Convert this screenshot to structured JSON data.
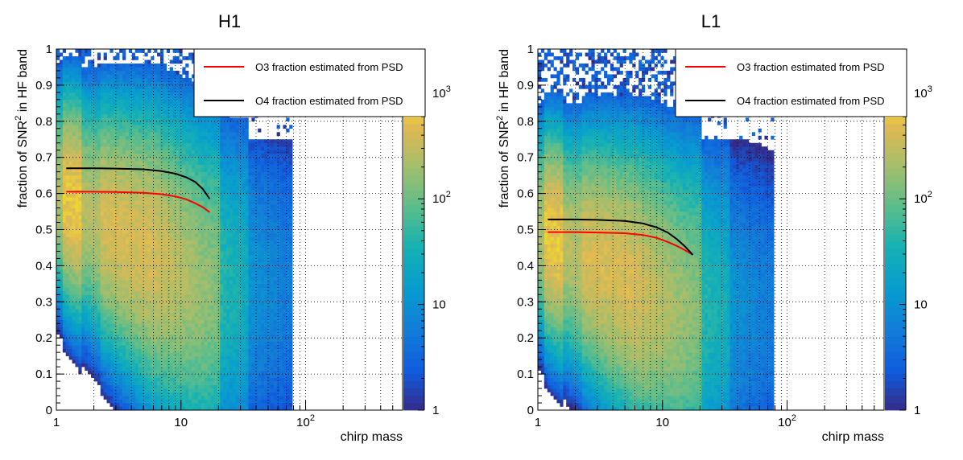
{
  "panels": [
    {
      "title": "H1",
      "xlabel": "chirp mass",
      "ylabel_parts": [
        "fraction of SNR",
        "2",
        " in HF band"
      ],
      "legend": [
        {
          "label": "O3 fraction estimated from PSD",
          "color": "#ff0000"
        },
        {
          "label": "O4 fraction estimated from PSD",
          "color": "#000000"
        }
      ],
      "colorbar_ticks": [
        {
          "value": 1,
          "label": "1"
        },
        {
          "value": 10,
          "label": "10"
        },
        {
          "value": 100,
          "label": "10",
          "sup": "2"
        },
        {
          "value": 1000,
          "label": "10",
          "sup": "3"
        }
      ]
    },
    {
      "title": "L1",
      "xlabel": "chirp mass",
      "ylabel_parts": [
        "fraction of SNR",
        "2",
        " in HF band"
      ],
      "legend": [
        {
          "label": "O3 fraction estimated from PSD",
          "color": "#ff0000"
        },
        {
          "label": "O4 fraction estimated from PSD",
          "color": "#000000"
        }
      ],
      "colorbar_ticks": [
        {
          "value": 1,
          "label": "1"
        },
        {
          "value": 10,
          "label": "10"
        },
        {
          "value": 100,
          "label": "10",
          "sup": "2"
        },
        {
          "value": 1000,
          "label": "10",
          "sup": "3"
        }
      ]
    }
  ],
  "chart_data": [
    {
      "type": "heatmap",
      "title": "H1",
      "xlabel": "chirp mass",
      "ylabel": "fraction of SNR^2 in HF band",
      "xscale": "log",
      "xlim": [
        1,
        600
      ],
      "ylim": [
        0,
        1
      ],
      "x_ticks": [
        {
          "value": 1,
          "label": "1"
        },
        {
          "value": 10,
          "label": "10"
        },
        {
          "value": 100,
          "label": "10",
          "sup": "2"
        }
      ],
      "y_ticks": [
        0,
        0.1,
        0.2,
        0.3,
        0.4,
        0.5,
        0.6,
        0.7,
        0.8,
        0.9,
        1
      ],
      "colorbar_scale": "log",
      "colorbar_range": [
        1,
        600
      ],
      "grid": true,
      "legend_position": "top-right",
      "density_ridges": [
        {
          "x": 1.3,
          "y": 0.58,
          "peak": 500
        },
        {
          "x": 3.5,
          "y": 0.48,
          "peak": 300
        },
        {
          "x": 15,
          "y": 0.35,
          "peak": 60
        }
      ],
      "series": [
        {
          "name": "O3 fraction estimated from PSD",
          "color": "#ff0000",
          "x": [
            1.2,
            2,
            3,
            5,
            7,
            9,
            11,
            13,
            15,
            17
          ],
          "y": [
            0.605,
            0.605,
            0.604,
            0.602,
            0.598,
            0.592,
            0.584,
            0.573,
            0.562,
            0.548
          ]
        },
        {
          "name": "O4 fraction estimated from PSD",
          "color": "#000000",
          "x": [
            1.2,
            2,
            3,
            5,
            7,
            9,
            11,
            13,
            15,
            17
          ],
          "y": [
            0.67,
            0.67,
            0.669,
            0.667,
            0.662,
            0.655,
            0.645,
            0.632,
            0.612,
            0.585
          ]
        }
      ]
    },
    {
      "type": "heatmap",
      "title": "L1",
      "xlabel": "chirp mass",
      "ylabel": "fraction of SNR^2 in HF band",
      "xscale": "log",
      "xlim": [
        1,
        600
      ],
      "ylim": [
        0,
        1
      ],
      "x_ticks": [
        {
          "value": 1,
          "label": "1"
        },
        {
          "value": 10,
          "label": "10"
        },
        {
          "value": 100,
          "label": "10",
          "sup": "2"
        }
      ],
      "y_ticks": [
        0,
        0.1,
        0.2,
        0.3,
        0.4,
        0.5,
        0.6,
        0.7,
        0.8,
        0.9,
        1
      ],
      "colorbar_scale": "log",
      "colorbar_range": [
        1,
        600
      ],
      "grid": true,
      "legend_position": "top-right",
      "density_ridges": [
        {
          "x": 1.3,
          "y": 0.48,
          "peak": 500
        },
        {
          "x": 3.2,
          "y": 0.38,
          "peak": 300
        },
        {
          "x": 14,
          "y": 0.28,
          "peak": 60
        }
      ],
      "series": [
        {
          "name": "O3 fraction estimated from PSD",
          "color": "#ff0000",
          "x": [
            1.2,
            2,
            3,
            5,
            7,
            9,
            11,
            13,
            15,
            17.5
          ],
          "y": [
            0.493,
            0.493,
            0.492,
            0.49,
            0.485,
            0.477,
            0.466,
            0.455,
            0.444,
            0.43
          ]
        },
        {
          "name": "O4 fraction estimated from PSD",
          "color": "#000000",
          "x": [
            1.2,
            2,
            3,
            5,
            7,
            9,
            11,
            13,
            15,
            17.5
          ],
          "y": [
            0.528,
            0.528,
            0.527,
            0.524,
            0.517,
            0.506,
            0.492,
            0.474,
            0.455,
            0.43
          ]
        }
      ]
    }
  ]
}
